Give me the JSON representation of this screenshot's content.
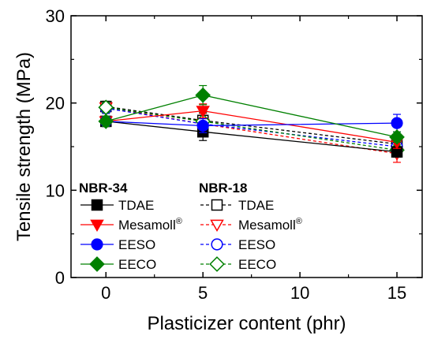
{
  "chart_data": {
    "type": "line",
    "xlabel": "Plasticizer content (phr)",
    "ylabel": "Tensile strength (MPa)",
    "xlim": [
      -1.8,
      16.3
    ],
    "ylim": [
      0,
      30
    ],
    "x_ticks": [
      0,
      5,
      10,
      15
    ],
    "x_tick_labels": [
      "0",
      "5",
      "10",
      "15"
    ],
    "y_ticks": [
      0,
      10,
      20,
      30
    ],
    "y_tick_labels": [
      "0",
      "10",
      "20",
      "30"
    ],
    "grid": false,
    "legend_placement": "bottom-left",
    "legend_groups": [
      {
        "header": "NBR-34",
        "filled": true
      },
      {
        "header": "NBR-18",
        "filled": false
      }
    ],
    "series": [
      {
        "name": "TDAE",
        "group": "NBR-34",
        "color": "#000000",
        "marker": "square",
        "filled": true,
        "dashed": false,
        "x": [
          0,
          5,
          15
        ],
        "y": [
          17.9,
          16.7,
          14.4
        ],
        "err": [
          0.6,
          1.0,
          0.6
        ]
      },
      {
        "name": "Mesamoll",
        "sup": "®",
        "group": "NBR-34",
        "color": "#ff0000",
        "marker": "triangle-down",
        "filled": true,
        "dashed": false,
        "x": [
          0,
          5,
          15
        ],
        "y": [
          17.9,
          19.1,
          15.5
        ],
        "err": [
          0.6,
          0.8,
          0.7
        ]
      },
      {
        "name": "EESO",
        "group": "NBR-34",
        "color": "#0000ff",
        "marker": "circle",
        "filled": true,
        "dashed": false,
        "x": [
          0,
          5,
          15
        ],
        "y": [
          17.9,
          17.4,
          17.7
        ],
        "err": [
          0.6,
          0.8,
          1.0
        ]
      },
      {
        "name": "EECO",
        "group": "NBR-34",
        "color": "#008000",
        "marker": "diamond",
        "filled": true,
        "dashed": false,
        "x": [
          0,
          5,
          15
        ],
        "y": [
          17.9,
          20.9,
          16.1
        ],
        "err": [
          0.6,
          1.1,
          0.6
        ]
      },
      {
        "name": "TDAE",
        "group": "NBR-18",
        "color": "#000000",
        "marker": "square",
        "filled": false,
        "dashed": true,
        "x": [
          0,
          5,
          15
        ],
        "y": [
          19.6,
          18.0,
          15.3
        ],
        "err": [
          0.6,
          1.4,
          0.6
        ]
      },
      {
        "name": "Mesamoll",
        "sup": "®",
        "group": "NBR-18",
        "color": "#ff0000",
        "marker": "triangle-down",
        "filled": false,
        "dashed": true,
        "x": [
          0,
          5,
          15
        ],
        "y": [
          19.5,
          17.6,
          14.2
        ],
        "err": [
          0.6,
          1.2,
          1.0
        ]
      },
      {
        "name": "EESO",
        "group": "NBR-18",
        "color": "#0000ff",
        "marker": "circle",
        "filled": false,
        "dashed": true,
        "x": [
          0,
          5,
          15
        ],
        "y": [
          19.4,
          17.6,
          15.0
        ],
        "err": [
          0.6,
          1.3,
          0.7
        ]
      },
      {
        "name": "EECO",
        "group": "NBR-18",
        "color": "#008000",
        "marker": "diamond",
        "filled": false,
        "dashed": true,
        "x": [
          0,
          5,
          15
        ],
        "y": [
          19.5,
          17.9,
          14.6
        ],
        "err": [
          0.6,
          1.0,
          0.6
        ]
      }
    ]
  }
}
